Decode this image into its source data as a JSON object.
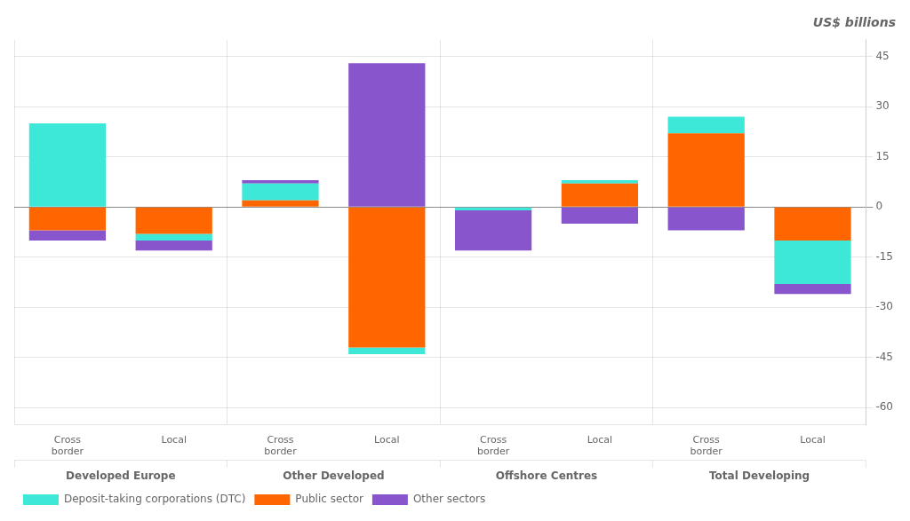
{
  "chart_data": {
    "type": "bar",
    "title": "US$ billions",
    "categories": [
      "Cross\nborder",
      "Local",
      "Cross\nborder",
      "Local",
      "Cross\nborder",
      "Local",
      "Cross\nborder",
      "Local"
    ],
    "groups": [
      "Developed Europe",
      "Other Developed",
      "Offshore Centres",
      "Total Developing"
    ],
    "series": [
      {
        "name": "Deposit-taking corporations (DTC)",
        "color": "#3de8d8",
        "values": [
          25,
          -2,
          5,
          -2,
          -1,
          1,
          5,
          -13
        ]
      },
      {
        "name": "Public sector",
        "color": "#ff6600",
        "values": [
          -7,
          -8,
          2,
          -42,
          0,
          7,
          22,
          -10
        ]
      },
      {
        "name": "Other sectors",
        "color": "#8855cc",
        "values": [
          -3,
          -3,
          1,
          43,
          -12,
          -5,
          -7,
          -3
        ]
      }
    ],
    "ylim": [
      -65,
      50
    ],
    "yticks": [
      -60,
      -45,
      -30,
      -15,
      0,
      15,
      30,
      45
    ],
    "grid": true,
    "stacked": true,
    "legend": "bottom"
  }
}
